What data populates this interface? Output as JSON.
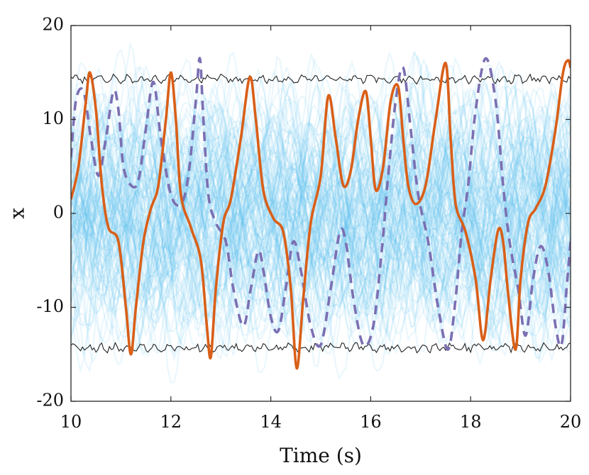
{
  "chart_data": {
    "type": "line",
    "title": "",
    "xlabel": "Time (s)",
    "ylabel": "x",
    "xlim": [
      10,
      20
    ],
    "ylim": [
      -20,
      20
    ],
    "xticks": [
      10,
      12,
      14,
      16,
      18,
      20
    ],
    "yticks": [
      -20,
      -10,
      0,
      10,
      20
    ],
    "xtick_labels": [
      "10",
      "12",
      "14",
      "16",
      "18",
      "20"
    ],
    "ytick_labels": [
      "-20",
      "-10",
      "0",
      "10",
      "20"
    ],
    "grid": false,
    "legend": "none",
    "colors": {
      "ensemble": "#5ec4ec",
      "truth": "#d95f18",
      "estimate": "#7b6fb2",
      "envelope": "#222222"
    },
    "series": [
      {
        "name": "ensemble-members",
        "style": "thin translucent light-blue lines",
        "count": 120,
        "range": [
          -18,
          18
        ]
      },
      {
        "name": "upper-envelope",
        "style": "thin black line",
        "mean": 14.3,
        "noise": 0.5
      },
      {
        "name": "lower-envelope",
        "style": "thin black line",
        "mean": -14.3,
        "noise": 0.5
      },
      {
        "name": "truth",
        "style": "solid thick orange line",
        "x": [
          10.0,
          10.15,
          10.3,
          10.38,
          10.5,
          10.62,
          10.75,
          10.95,
          11.1,
          11.2,
          11.3,
          11.45,
          11.6,
          11.75,
          11.9,
          12.0,
          12.1,
          12.2,
          12.4,
          12.6,
          12.72,
          12.8,
          12.9,
          13.05,
          13.2,
          13.4,
          13.58,
          13.7,
          13.85,
          14.05,
          14.25,
          14.4,
          14.52,
          14.65,
          14.8,
          15.0,
          15.15,
          15.3,
          15.45,
          15.6,
          15.75,
          15.9,
          16.0,
          16.1,
          16.25,
          16.4,
          16.55,
          16.65,
          16.75,
          16.9,
          17.1,
          17.3,
          17.5,
          17.6,
          17.7,
          17.9,
          18.1,
          18.25,
          18.4,
          18.55,
          18.65,
          18.75,
          18.9,
          19.0,
          19.15,
          19.3,
          19.5,
          19.7,
          19.85,
          19.95,
          20.0
        ],
        "values": [
          1.5,
          5.0,
          12.0,
          15.0,
          11.0,
          3.0,
          -1.5,
          -3.0,
          -10.0,
          -15.0,
          -10.0,
          -3.0,
          0.5,
          3.0,
          10.0,
          15.0,
          10.0,
          2.0,
          -1.5,
          -5.0,
          -12.0,
          -15.3,
          -8.0,
          -1.0,
          1.5,
          8.0,
          14.5,
          10.0,
          2.5,
          -0.5,
          -2.0,
          -8.0,
          -16.5,
          -9.0,
          -1.0,
          4.0,
          12.5,
          8.0,
          3.0,
          4.5,
          10.0,
          13.0,
          8.0,
          2.5,
          5.0,
          12.0,
          13.5,
          8.0,
          3.0,
          1.0,
          3.0,
          10.0,
          16.0,
          8.0,
          1.0,
          -2.0,
          -7.0,
          -13.5,
          -7.0,
          -1.8,
          -3.0,
          -8.5,
          -14.5,
          -7.0,
          -1.0,
          0.5,
          3.0,
          9.0,
          15.0,
          16.3,
          15.5
        ]
      },
      {
        "name": "estimate",
        "style": "dashed thick purple line",
        "x": [
          10.0,
          10.1,
          10.25,
          10.4,
          10.55,
          10.7,
          10.85,
          10.95,
          11.05,
          11.2,
          11.35,
          11.5,
          11.65,
          11.8,
          12.0,
          12.2,
          12.35,
          12.5,
          12.58,
          12.65,
          12.75,
          12.9,
          13.1,
          13.25,
          13.45,
          13.6,
          13.75,
          13.85,
          14.0,
          14.15,
          14.3,
          14.45,
          14.6,
          14.8,
          15.0,
          15.2,
          15.38,
          15.5,
          15.65,
          15.85,
          16.05,
          16.22,
          16.35,
          16.5,
          16.65,
          16.8,
          16.95,
          17.15,
          17.35,
          17.55,
          17.7,
          17.82,
          17.95,
          18.1,
          18.3,
          18.5,
          18.65,
          18.78,
          18.95,
          19.1,
          19.25,
          19.4,
          19.55,
          19.7,
          19.82,
          19.92,
          20.0
        ],
        "values": [
          6.0,
          12.0,
          13.0,
          8.0,
          4.0,
          8.0,
          13.0,
          11.0,
          5.0,
          3.0,
          3.5,
          9.0,
          14.0,
          8.0,
          2.0,
          1.0,
          4.0,
          12.0,
          16.5,
          10.0,
          2.0,
          -1.0,
          -3.0,
          -8.0,
          -12.0,
          -8.0,
          -4.0,
          -6.0,
          -11.0,
          -12.5,
          -8.0,
          -3.0,
          -6.0,
          -12.0,
          -14.0,
          -8.0,
          -2.0,
          -3.0,
          -9.0,
          -14.0,
          -12.0,
          -4.0,
          4.0,
          12.0,
          15.5,
          9.0,
          2.0,
          -3.0,
          -10.0,
          -14.5,
          -9.0,
          -2.0,
          3.0,
          11.0,
          16.5,
          12.0,
          3.0,
          -3.0,
          -8.0,
          -13.0,
          -7.0,
          -3.5,
          -6.0,
          -12.0,
          -14.0,
          -8.0,
          -3.0
        ]
      }
    ]
  }
}
